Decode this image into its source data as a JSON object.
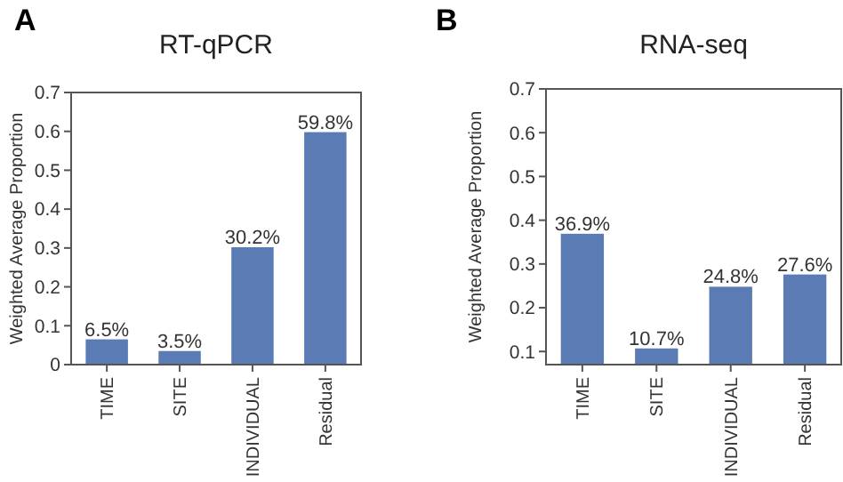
{
  "chart_data": [
    {
      "type": "bar",
      "title": "RT-qPCR",
      "ylabel": "Weighted Average Proportion",
      "annotations": [
        "A"
      ],
      "categories": [
        "TIME",
        "SITE",
        "INDIVIDUAL",
        "Residual"
      ],
      "values": [
        0.065,
        0.035,
        0.302,
        0.598
      ],
      "value_labels": [
        "6.5%",
        "3.5%",
        "30.2%",
        "59.8%"
      ],
      "color": "#5b7bb5",
      "ylim": [
        0,
        0.7
      ],
      "yticks": [
        0,
        0.1,
        0.2,
        0.3,
        0.4,
        0.5,
        0.6,
        0.7
      ],
      "grid": false
    },
    {
      "type": "bar",
      "title": "RNA-seq",
      "ylabel": "Weighted Average Proportion",
      "annotations": [
        "B"
      ],
      "categories": [
        "TIME",
        "SITE",
        "INDIVIDUAL",
        "Residual"
      ],
      "values": [
        0.369,
        0.107,
        0.248,
        0.276
      ],
      "value_labels": [
        "36.9%",
        "10.7%",
        "24.8%",
        "27.6%"
      ],
      "color": "#5b7bb5",
      "ylim": [
        0.07,
        0.7
      ],
      "yticks": [
        0.1,
        0.2,
        0.3,
        0.4,
        0.5,
        0.6,
        0.7
      ],
      "grid": false
    }
  ]
}
